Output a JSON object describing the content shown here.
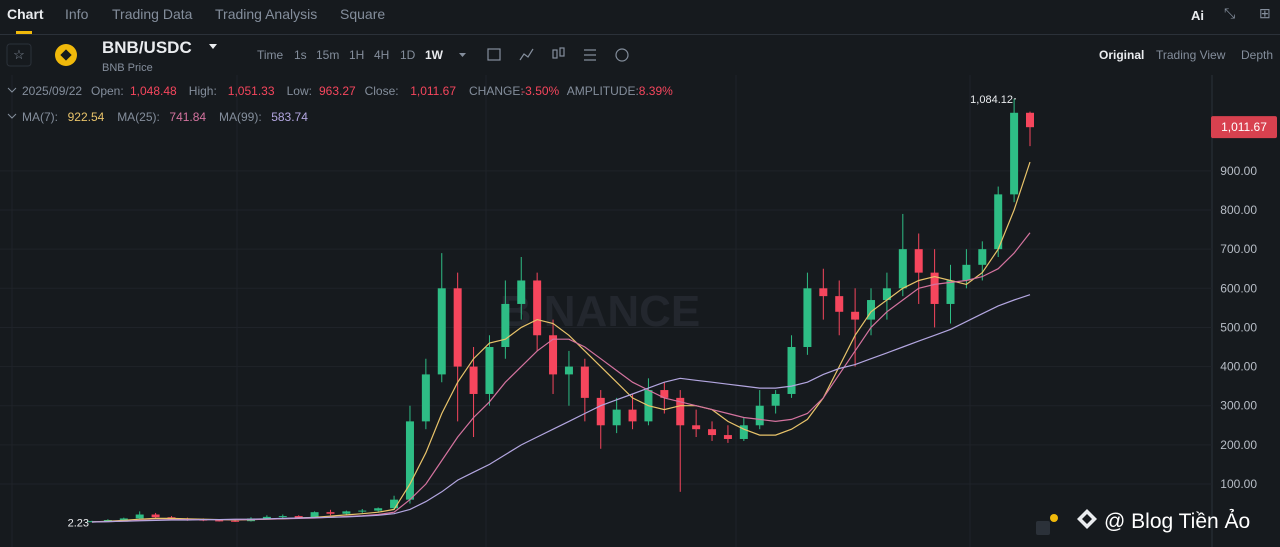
{
  "tabs": [
    "Chart",
    "Info",
    "Trading Data",
    "Trading Analysis",
    "Square"
  ],
  "header": {
    "pair": "BNB/USDC",
    "subtitle": "BNB Price"
  },
  "intervals": [
    "Time",
    "1s",
    "15m",
    "1H",
    "4H",
    "1D",
    "1W"
  ],
  "view_modes": [
    "Original",
    "Trading View",
    "Depth"
  ],
  "info": {
    "date": "2025/09/22",
    "fields": [
      {
        "label": "Open:",
        "value": "1,048.48"
      },
      {
        "label": "High:",
        "value": "1,051.33"
      },
      {
        "label": "Low:",
        "value": "963.27"
      },
      {
        "label": "Close:",
        "value": "1,011.67"
      },
      {
        "label": "CHANGE:",
        "value": "-3.50%"
      },
      {
        "label": "AMPLITUDE:",
        "value": "8.39%"
      }
    ]
  },
  "ma": [
    {
      "label": "MA(7):",
      "value": "922.54",
      "color": "#e8c36a"
    },
    {
      "label": "MA(25):",
      "value": "741.84",
      "color": "#d4739f"
    },
    {
      "label": "MA(99):",
      "value": "583.74",
      "color": "#b3a6e0"
    }
  ],
  "chart": {
    "type": "candlestick",
    "watermark": "BINANCE",
    "ylim": [
      -61,
      1145
    ],
    "yticks": [
      {
        "value": 100,
        "label": "100.00"
      },
      {
        "value": 200,
        "label": "200.00"
      },
      {
        "value": 300,
        "label": "300.00"
      },
      {
        "value": 400,
        "label": "400.00"
      },
      {
        "value": 500,
        "label": "500.00"
      },
      {
        "value": 600,
        "label": "600.00"
      },
      {
        "value": 700,
        "label": "700.00"
      },
      {
        "value": 800,
        "label": "800.00"
      },
      {
        "value": 900,
        "label": "900.00"
      }
    ],
    "up_color": "#2ebd85",
    "down_color": "#f6465d",
    "candles": [
      [
        2.5,
        6,
        2.23,
        5
      ],
      [
        5,
        10,
        4,
        8
      ],
      [
        8,
        14,
        6,
        12
      ],
      [
        12,
        30,
        10,
        22
      ],
      [
        22,
        26,
        12,
        15
      ],
      [
        15,
        18,
        8,
        10
      ],
      [
        10,
        14,
        6,
        9
      ],
      [
        9,
        12,
        5,
        7
      ],
      [
        7,
        10,
        4,
        6
      ],
      [
        6,
        9,
        3,
        5
      ],
      [
        5,
        15,
        4,
        12
      ],
      [
        12,
        20,
        10,
        16
      ],
      [
        16,
        22,
        12,
        18
      ],
      [
        18,
        20,
        12,
        14
      ],
      [
        14,
        30,
        13,
        28
      ],
      [
        28,
        34,
        20,
        24
      ],
      [
        24,
        32,
        22,
        30
      ],
      [
        30,
        36,
        26,
        32
      ],
      [
        32,
        40,
        28,
        38
      ],
      [
        38,
        70,
        34,
        60
      ],
      [
        60,
        300,
        50,
        260
      ],
      [
        260,
        420,
        240,
        380
      ],
      [
        380,
        690,
        360,
        600
      ],
      [
        600,
        640,
        260,
        400
      ],
      [
        400,
        450,
        220,
        330
      ],
      [
        330,
        480,
        300,
        450
      ],
      [
        450,
        620,
        420,
        560
      ],
      [
        560,
        680,
        520,
        620
      ],
      [
        620,
        640,
        440,
        480
      ],
      [
        480,
        520,
        330,
        380
      ],
      [
        380,
        440,
        300,
        400
      ],
      [
        400,
        420,
        260,
        320
      ],
      [
        320,
        340,
        190,
        250
      ],
      [
        250,
        320,
        230,
        290
      ],
      [
        290,
        330,
        240,
        260
      ],
      [
        260,
        370,
        250,
        340
      ],
      [
        340,
        360,
        280,
        320
      ],
      [
        320,
        340,
        80,
        250
      ],
      [
        250,
        290,
        220,
        240
      ],
      [
        240,
        260,
        210,
        225
      ],
      [
        225,
        250,
        205,
        215
      ],
      [
        215,
        270,
        210,
        250
      ],
      [
        250,
        340,
        240,
        300
      ],
      [
        300,
        340,
        280,
        330
      ],
      [
        330,
        480,
        320,
        450
      ],
      [
        450,
        640,
        430,
        600
      ],
      [
        600,
        650,
        520,
        580
      ],
      [
        580,
        620,
        480,
        540
      ],
      [
        540,
        600,
        400,
        520
      ],
      [
        520,
        600,
        480,
        570
      ],
      [
        570,
        640,
        520,
        600
      ],
      [
        600,
        790,
        580,
        700
      ],
      [
        700,
        740,
        560,
        640
      ],
      [
        640,
        700,
        500,
        560
      ],
      [
        560,
        660,
        510,
        620
      ],
      [
        620,
        700,
        600,
        660
      ],
      [
        660,
        720,
        620,
        700
      ],
      [
        700,
        860,
        680,
        840
      ],
      [
        840,
        1084.12,
        820,
        1048.48
      ],
      [
        1048.48,
        1051.33,
        963.27,
        1011.67
      ]
    ],
    "ma7": [
      3,
      5,
      7,
      10,
      12,
      12,
      11,
      10,
      9,
      8,
      9,
      10,
      11,
      13,
      15,
      18,
      21,
      24,
      28,
      35,
      100,
      180,
      280,
      360,
      420,
      460,
      470,
      500,
      520,
      510,
      480,
      440,
      400,
      360,
      320,
      300,
      290,
      300,
      300,
      290,
      260,
      240,
      225,
      225,
      240,
      265,
      320,
      400,
      480,
      540,
      570,
      600,
      620,
      630,
      620,
      610,
      640,
      700,
      800,
      922.54
    ],
    "ma25": [
      3,
      4,
      5,
      7,
      8,
      9,
      9,
      9,
      9,
      9,
      9,
      10,
      11,
      12,
      13,
      15,
      17,
      19,
      22,
      28,
      60,
      100,
      160,
      220,
      270,
      310,
      360,
      400,
      440,
      470,
      470,
      450,
      420,
      390,
      360,
      340,
      320,
      310,
      300,
      290,
      280,
      270,
      265,
      260,
      265,
      280,
      320,
      380,
      440,
      500,
      540,
      570,
      600,
      610,
      615,
      620,
      630,
      650,
      690,
      741.84
    ],
    "ma99": [
      3,
      4,
      5,
      6,
      7,
      8,
      8,
      9,
      9,
      10,
      10,
      11,
      12,
      13,
      14,
      15,
      16,
      18,
      20,
      24,
      35,
      55,
      80,
      110,
      130,
      150,
      175,
      200,
      220,
      240,
      260,
      280,
      300,
      315,
      330,
      345,
      360,
      370,
      365,
      360,
      355,
      350,
      345,
      345,
      350,
      360,
      380,
      395,
      405,
      420,
      435,
      450,
      465,
      480,
      495,
      515,
      535,
      555,
      570,
      583.74
    ],
    "high_label": {
      "value": 1084.12,
      "label": "1,084.12"
    },
    "low_label": {
      "value": 2.23,
      "label": "2.23"
    },
    "last_price": {
      "value": 1011.67,
      "label": "1,011.67"
    }
  },
  "footer": "@ Blog Tiền Ảo"
}
